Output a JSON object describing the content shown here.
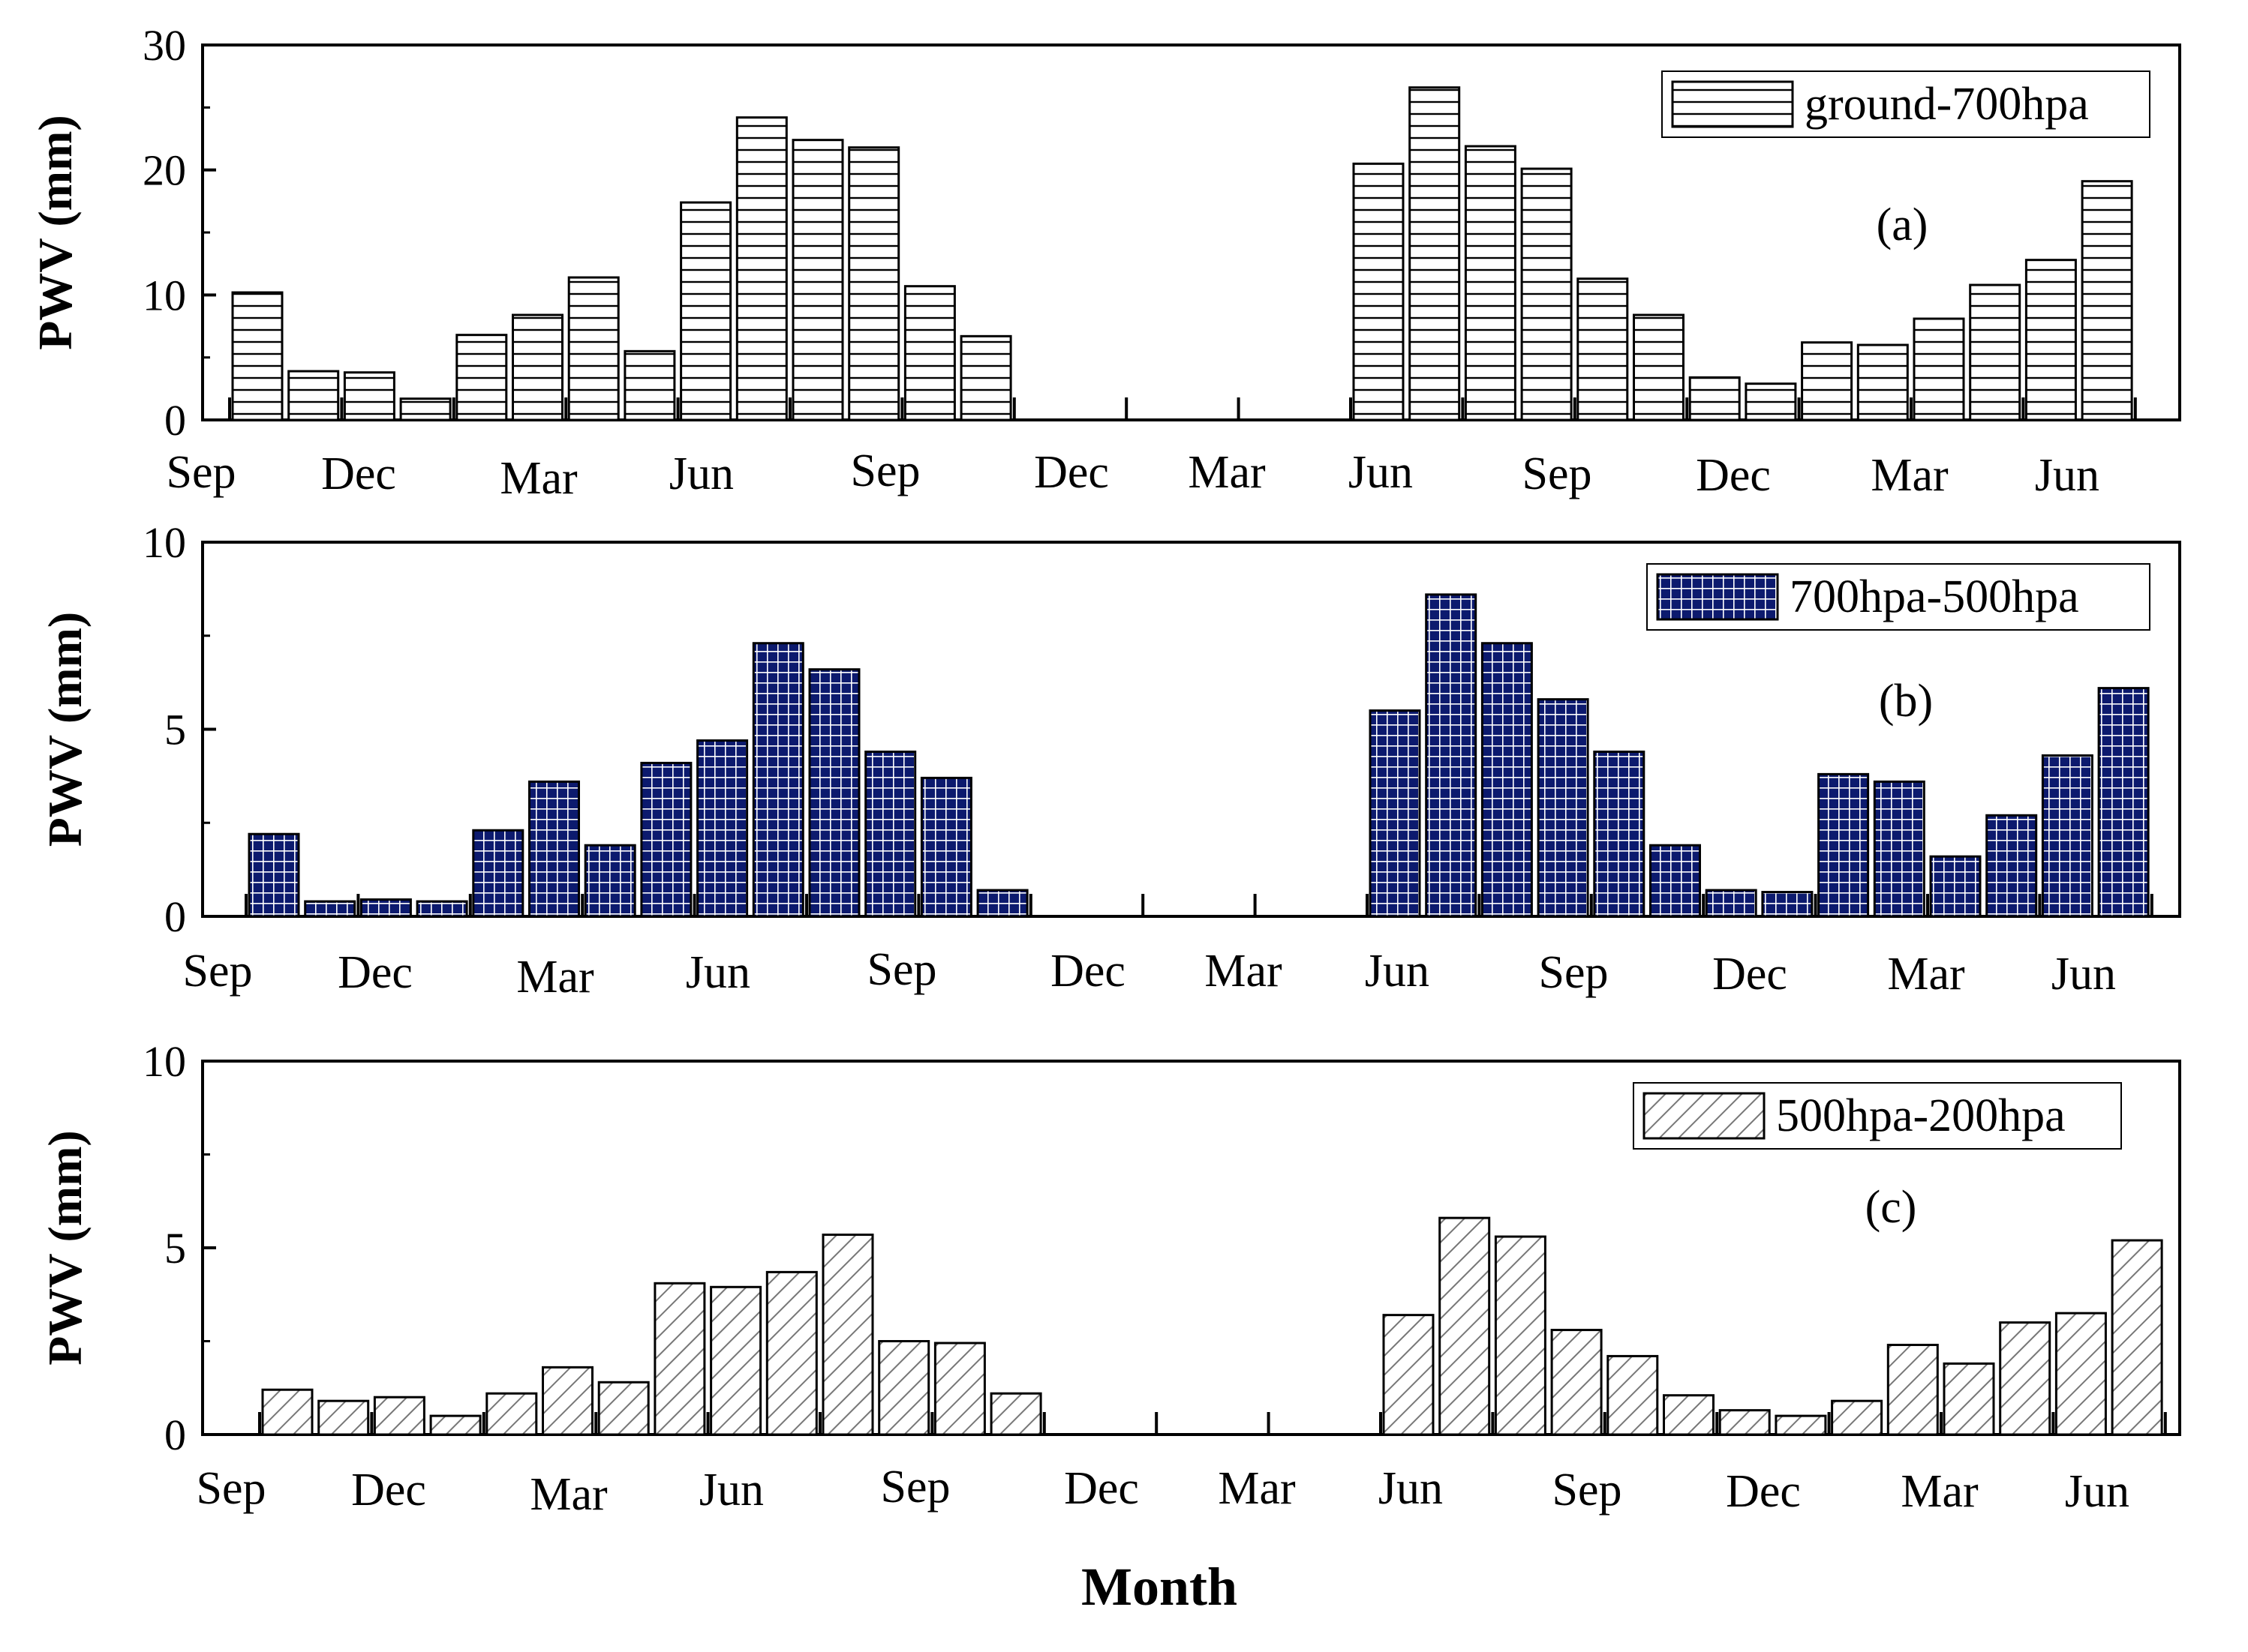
{
  "figure": {
    "xlabel": "Month"
  },
  "chart_data": [
    {
      "type": "bar",
      "panel_label": "(a)",
      "legend": "ground-700hpa",
      "legend_position": "top-right",
      "ylabel": "PWV (mm)",
      "ylim": [
        0,
        30
      ],
      "yticks": [
        "0",
        "10",
        "20",
        "30"
      ],
      "month_labels": [
        "Sep",
        "Dec",
        "Mar",
        "Jun",
        "Sep",
        "Dec",
        "Mar",
        "Jun",
        "Sep",
        "Dec",
        "Mar",
        "Jun"
      ],
      "colors": {
        "fill": "#ffffff",
        "pattern": "#000000"
      },
      "pattern": "horizontal-lines",
      "series": [
        {
          "name": "ground-700hpa",
          "values": [
            10.2,
            3.9,
            3.8,
            1.7,
            6.8,
            8.4,
            11.4,
            5.5,
            17.4,
            24.2,
            22.4,
            21.8,
            10.7,
            6.7,
            0,
            0,
            0,
            0,
            0,
            0,
            20.5,
            26.6,
            21.9,
            20.1,
            11.3,
            8.4,
            3.4,
            2.9,
            6.2,
            6.0,
            8.1,
            10.8,
            12.8,
            19.1
          ]
        }
      ]
    },
    {
      "type": "bar",
      "panel_label": "(b)",
      "legend": "700hpa-500hpa",
      "legend_position": "top-right",
      "ylabel": "PWV (mm)",
      "ylim": [
        0,
        10
      ],
      "yticks": [
        "0",
        "5",
        "10"
      ],
      "month_labels": [
        "Sep",
        "Dec",
        "Mar",
        "Jun",
        "Sep",
        "Dec",
        "Mar",
        "Jun",
        "Sep",
        "Dec",
        "Mar",
        "Jun"
      ],
      "colors": {
        "fill": "#0c1a6e",
        "pattern": "#ffffff"
      },
      "pattern": "grid",
      "series": [
        {
          "name": "700hpa-500hpa",
          "values": [
            2.2,
            0.4,
            0.45,
            0.4,
            2.3,
            3.6,
            1.9,
            4.1,
            4.7,
            7.3,
            6.6,
            4.4,
            3.7,
            0.7,
            0,
            0,
            0,
            0,
            0,
            0,
            5.5,
            8.6,
            7.3,
            5.8,
            4.4,
            1.9,
            0.7,
            0.65,
            3.8,
            3.6,
            1.6,
            2.7,
            4.3,
            6.1
          ]
        }
      ]
    },
    {
      "type": "bar",
      "panel_label": "(c)",
      "legend": "500hpa-200hpa",
      "legend_position": "top-right",
      "ylabel": "PWV (mm)",
      "ylim": [
        0,
        10
      ],
      "yticks": [
        "0",
        "5",
        "10"
      ],
      "month_labels": [
        "Sep",
        "Dec",
        "Mar",
        "Jun",
        "Sep",
        "Dec",
        "Mar",
        "Jun",
        "Sep",
        "Dec",
        "Mar",
        "Jun"
      ],
      "colors": {
        "fill": "#ffffff",
        "pattern": "#777777"
      },
      "pattern": "diagonal-lines",
      "series": [
        {
          "name": "500hpa-200hpa",
          "values": [
            1.2,
            0.9,
            1.0,
            0.5,
            1.1,
            1.8,
            1.4,
            4.05,
            3.95,
            4.35,
            5.35,
            2.5,
            2.45,
            1.1,
            0,
            0,
            0,
            0,
            0,
            0,
            3.2,
            5.8,
            5.3,
            2.8,
            2.1,
            1.05,
            0.65,
            0.5,
            0.9,
            2.4,
            1.9,
            3.0,
            3.25,
            5.2
          ]
        }
      ]
    }
  ]
}
